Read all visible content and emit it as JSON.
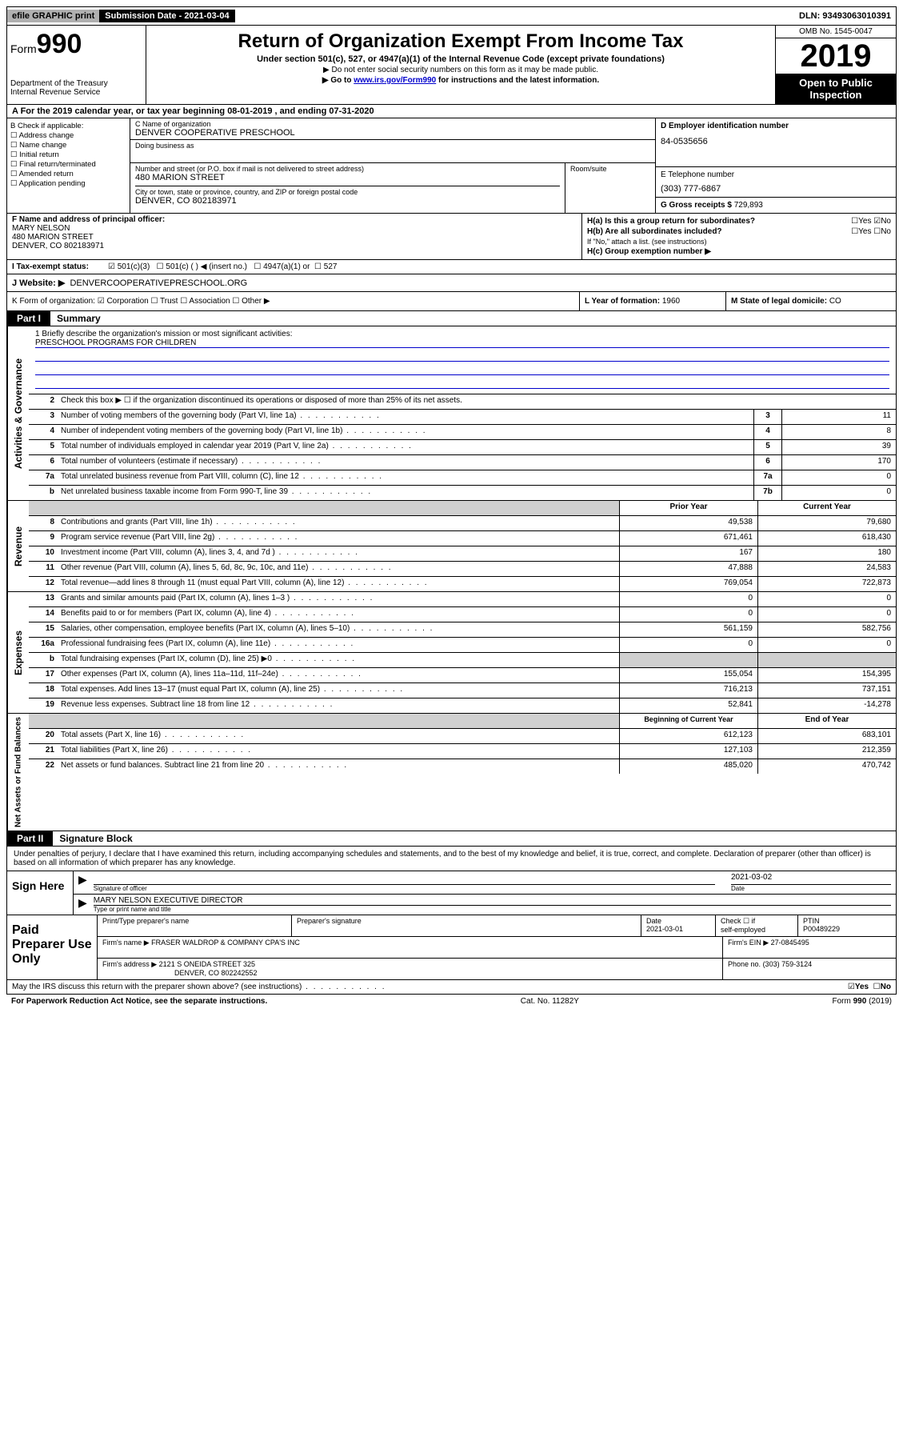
{
  "topbar": {
    "efile": "efile GRAPHIC print",
    "submission": "Submission Date - 2021-03-04",
    "dln": "DLN: 93493063010391"
  },
  "header": {
    "form_prefix": "Form",
    "form_number": "990",
    "dept1": "Department of the Treasury",
    "dept2": "Internal Revenue Service",
    "title": "Return of Organization Exempt From Income Tax",
    "subtitle": "Under section 501(c), 527, or 4947(a)(1) of the Internal Revenue Code (except private foundations)",
    "note1": "▶ Do not enter social security numbers on this form as it may be made public.",
    "note2_pre": "▶ Go to ",
    "note2_link": "www.irs.gov/Form990",
    "note2_post": " for instructions and the latest information.",
    "omb": "OMB No. 1545-0047",
    "year": "2019",
    "open": "Open to Public Inspection"
  },
  "row_a": "A  For the 2019 calendar year, or tax year beginning 08-01-2019    , and ending 07-31-2020",
  "section_b": {
    "label": "B Check if applicable:",
    "opts": [
      "Address change",
      "Name change",
      "Initial return",
      "Final return/terminated",
      "Amended return",
      "Application pending"
    ]
  },
  "section_c": {
    "name_lbl": "C Name of organization",
    "name": "DENVER COOPERATIVE PRESCHOOL",
    "dba_lbl": "Doing business as",
    "addr_lbl": "Number and street (or P.O. box if mail is not delivered to street address)",
    "addr": "480 MARION STREET",
    "room_lbl": "Room/suite",
    "city_lbl": "City or town, state or province, country, and ZIP or foreign postal code",
    "city": "DENVER, CO  802183971"
  },
  "section_d": {
    "lbl": "D Employer identification number",
    "val": "84-0535656"
  },
  "section_e": {
    "lbl": "E Telephone number",
    "val": "(303) 777-6867"
  },
  "section_g": {
    "lbl": "G Gross receipts $",
    "val": "729,893"
  },
  "section_f": {
    "lbl": "F  Name and address of principal officer:",
    "name": "MARY NELSON",
    "addr1": "480 MARION STREET",
    "addr2": "DENVER, CO  802183971"
  },
  "section_h": {
    "a": "H(a)  Is this a group return for subordinates?",
    "a_no": "No",
    "a_yes": "Yes",
    "b": "H(b)  Are all subordinates included?",
    "b_note": "If \"No,\" attach a list. (see instructions)",
    "c": "H(c)  Group exemption number ▶"
  },
  "section_i": {
    "lbl": "I    Tax-exempt status:",
    "opt1": "501(c)(3)",
    "opt2": "501(c) (   ) ◀ (insert no.)",
    "opt3": "4947(a)(1) or",
    "opt4": "527"
  },
  "section_j": {
    "lbl": "J   Website: ▶",
    "val": "DENVERCOOPERATIVEPRESCHOOL.ORG"
  },
  "section_k": "K Form of organization:  ☑ Corporation  ☐ Trust  ☐ Association  ☐ Other ▶",
  "section_l": {
    "lbl": "L Year of formation:",
    "val": "1960"
  },
  "section_m": {
    "lbl": "M State of legal domicile:",
    "val": "CO"
  },
  "part1": {
    "label": "Part I",
    "title": "Summary"
  },
  "mission": {
    "q": "1  Briefly describe the organization's mission or most significant activities:",
    "a": "PRESCHOOL PROGRAMS FOR CHILDREN"
  },
  "governance": {
    "side": "Activities & Governance",
    "l2": "Check this box ▶ ☐  if the organization discontinued its operations or disposed of more than 25% of its net assets.",
    "rows": [
      {
        "n": "3",
        "t": "Number of voting members of the governing body (Part VI, line 1a)",
        "box": "3",
        "v": "11"
      },
      {
        "n": "4",
        "t": "Number of independent voting members of the governing body (Part VI, line 1b)",
        "box": "4",
        "v": "8"
      },
      {
        "n": "5",
        "t": "Total number of individuals employed in calendar year 2019 (Part V, line 2a)",
        "box": "5",
        "v": "39"
      },
      {
        "n": "6",
        "t": "Total number of volunteers (estimate if necessary)",
        "box": "6",
        "v": "170"
      },
      {
        "n": "7a",
        "t": "Total unrelated business revenue from Part VIII, column (C), line 12",
        "box": "7a",
        "v": "0"
      },
      {
        "n": " b",
        "t": "Net unrelated business taxable income from Form 990-T, line 39",
        "box": "7b",
        "v": "0"
      }
    ]
  },
  "revenue": {
    "side": "Revenue",
    "h1": "Prior Year",
    "h2": "Current Year",
    "rows": [
      {
        "n": "8",
        "t": "Contributions and grants (Part VIII, line 1h)",
        "p": "49,538",
        "c": "79,680"
      },
      {
        "n": "9",
        "t": "Program service revenue (Part VIII, line 2g)",
        "p": "671,461",
        "c": "618,430"
      },
      {
        "n": "10",
        "t": "Investment income (Part VIII, column (A), lines 3, 4, and 7d )",
        "p": "167",
        "c": "180"
      },
      {
        "n": "11",
        "t": "Other revenue (Part VIII, column (A), lines 5, 6d, 8c, 9c, 10c, and 11e)",
        "p": "47,888",
        "c": "24,583"
      },
      {
        "n": "12",
        "t": "Total revenue—add lines 8 through 11 (must equal Part VIII, column (A), line 12)",
        "p": "769,054",
        "c": "722,873"
      }
    ]
  },
  "expenses": {
    "side": "Expenses",
    "rows": [
      {
        "n": "13",
        "t": "Grants and similar amounts paid (Part IX, column (A), lines 1–3 )",
        "p": "0",
        "c": "0"
      },
      {
        "n": "14",
        "t": "Benefits paid to or for members (Part IX, column (A), line 4)",
        "p": "0",
        "c": "0"
      },
      {
        "n": "15",
        "t": "Salaries, other compensation, employee benefits (Part IX, column (A), lines 5–10)",
        "p": "561,159",
        "c": "582,756"
      },
      {
        "n": "16a",
        "t": "Professional fundraising fees (Part IX, column (A), line 11e)",
        "p": "0",
        "c": "0"
      },
      {
        "n": " b",
        "t": "Total fundraising expenses (Part IX, column (D), line 25) ▶0",
        "p": "",
        "c": "",
        "shaded": true
      },
      {
        "n": "17",
        "t": "Other expenses (Part IX, column (A), lines 11a–11d, 11f–24e)",
        "p": "155,054",
        "c": "154,395"
      },
      {
        "n": "18",
        "t": "Total expenses. Add lines 13–17 (must equal Part IX, column (A), line 25)",
        "p": "716,213",
        "c": "737,151"
      },
      {
        "n": "19",
        "t": "Revenue less expenses. Subtract line 18 from line 12",
        "p": "52,841",
        "c": "-14,278"
      }
    ]
  },
  "netassets": {
    "side": "Net Assets or Fund Balances",
    "h1": "Beginning of Current Year",
    "h2": "End of Year",
    "rows": [
      {
        "n": "20",
        "t": "Total assets (Part X, line 16)",
        "p": "612,123",
        "c": "683,101"
      },
      {
        "n": "21",
        "t": "Total liabilities (Part X, line 26)",
        "p": "127,103",
        "c": "212,359"
      },
      {
        "n": "22",
        "t": "Net assets or fund balances. Subtract line 21 from line 20",
        "p": "485,020",
        "c": "470,742"
      }
    ]
  },
  "part2": {
    "label": "Part II",
    "title": "Signature Block"
  },
  "sig": {
    "declare": "Under penalties of perjury, I declare that I have examined this return, including accompanying schedules and statements, and to the best of my knowledge and belief, it is true, correct, and complete. Declaration of preparer (other than officer) is based on all information of which preparer has any knowledge.",
    "sign_here": "Sign Here",
    "sig_lbl": "Signature of officer",
    "date": "2021-03-02",
    "date_lbl": "Date",
    "name": "MARY NELSON  EXECUTIVE DIRECTOR",
    "name_lbl": "Type or print name and title"
  },
  "prep": {
    "label": "Paid Preparer Use Only",
    "h1": "Print/Type preparer's name",
    "h2": "Preparer's signature",
    "h3": "Date",
    "date": "2021-03-01",
    "h4_a": "Check ☐ if",
    "h4_b": "self-employed",
    "h5": "PTIN",
    "ptin": "P00489229",
    "firm_lbl": "Firm's name    ▶",
    "firm": "FRASER WALDROP & COMPANY CPA'S INC",
    "ein_lbl": "Firm's EIN ▶",
    "ein": "27-0845495",
    "addr_lbl": "Firm's address ▶",
    "addr1": "2121 S ONEIDA STREET 325",
    "addr2": "DENVER, CO  802242552",
    "phone_lbl": "Phone no.",
    "phone": "(303) 759-3124"
  },
  "footer": {
    "discuss": "May the IRS discuss this return with the preparer shown above? (see instructions)",
    "yes": "Yes",
    "no": "No",
    "paperwork": "For Paperwork Reduction Act Notice, see the separate instructions.",
    "cat": "Cat. No. 11282Y",
    "form": "Form 990 (2019)"
  }
}
